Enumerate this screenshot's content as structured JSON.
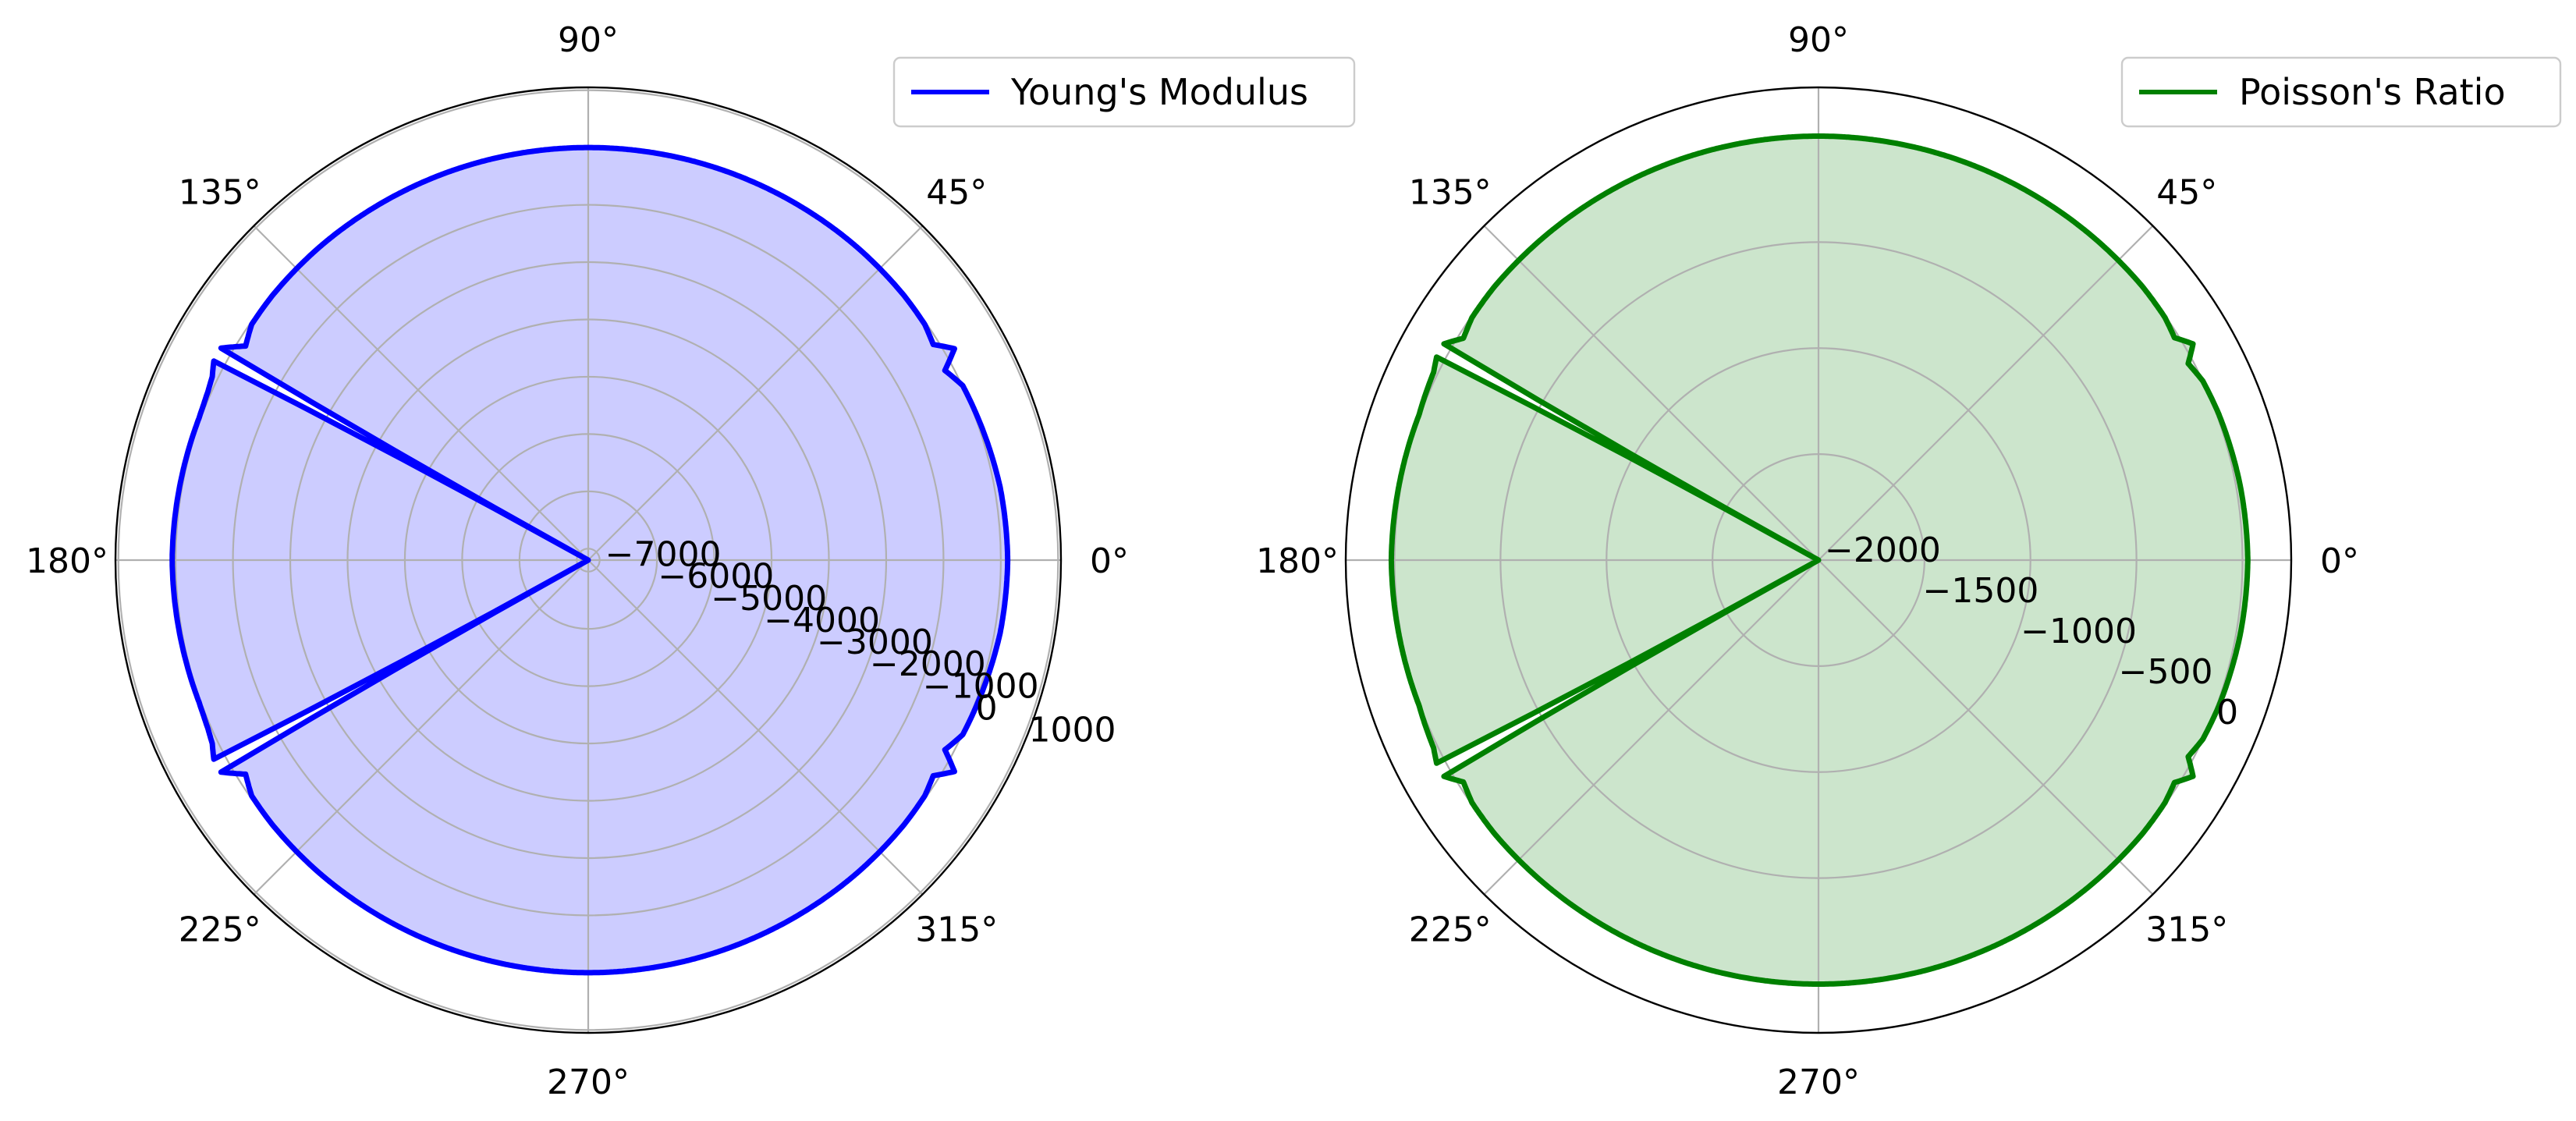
{
  "chart_data": [
    {
      "type": "polar",
      "title": "",
      "theta_unit": "degrees",
      "theta_tick_labels": [
        "0°",
        "45°",
        "90°",
        "135°",
        "180°",
        "225°",
        "270°",
        "315°"
      ],
      "r_ticks": [
        -7000,
        -6000,
        -5000,
        -4000,
        -3000,
        -2000,
        -1000,
        0,
        1000
      ],
      "r_tick_labels": [
        "−7000",
        "−6000",
        "−5000",
        "−4000",
        "−3000",
        "−2000",
        "−1000",
        "0",
        "1000"
      ],
      "rlim": [
        -7200,
        1050
      ],
      "grid": true,
      "legend_position": "upper-right",
      "series": [
        {
          "name": "Young's Modulus",
          "color": "#0000ff",
          "fill_color": "#ccccff",
          "theta_deg": [
            0,
            10,
            20,
            25,
            28,
            30,
            32,
            35,
            40,
            50,
            60,
            70,
            80,
            90,
            100,
            110,
            120,
            130,
            140,
            145,
            148,
            150,
            151,
            152,
            154,
            156,
            158,
            160,
            180,
            200,
            202,
            204,
            206,
            208,
            209,
            210,
            212,
            215,
            220,
            230,
            240,
            250,
            260,
            270,
            280,
            290,
            300,
            310,
            320,
            325,
            328,
            330,
            332,
            335,
            340,
            350,
            360
          ],
          "r": [
            120,
            100,
            40,
            10,
            -150,
            180,
            -100,
            -30,
            -10,
            0,
            0,
            0,
            0,
            0,
            0,
            0,
            0,
            0,
            -10,
            -30,
            -150,
            200,
            -7200,
            200,
            100,
            60,
            40,
            30,
            60,
            30,
            40,
            60,
            100,
            200,
            -7200,
            200,
            -150,
            -30,
            -10,
            0,
            0,
            0,
            0,
            0,
            0,
            0,
            0,
            0,
            -10,
            -30,
            -100,
            180,
            -150,
            10,
            40,
            100,
            120
          ]
        }
      ]
    },
    {
      "type": "polar",
      "title": "",
      "theta_unit": "degrees",
      "theta_tick_labels": [
        "0°",
        "45°",
        "90°",
        "135°",
        "180°",
        "225°",
        "270°",
        "315°"
      ],
      "r_ticks": [
        -2000,
        -1500,
        -1000,
        -500,
        0
      ],
      "r_tick_labels": [
        "−2000",
        "−1500",
        "−1000",
        "−500",
        "0"
      ],
      "rlim": [
        -2000,
        230
      ],
      "grid": true,
      "legend_position": "upper-right",
      "series": [
        {
          "name": "Poisson's Ratio",
          "color": "#008000",
          "fill_color": "#cce5cc",
          "theta_deg": [
            0,
            10,
            20,
            25,
            28,
            30,
            32,
            35,
            40,
            50,
            60,
            70,
            80,
            90,
            100,
            110,
            120,
            130,
            140,
            145,
            148,
            150,
            151,
            152,
            154,
            156,
            158,
            160,
            180,
            200,
            202,
            204,
            206,
            208,
            209,
            210,
            212,
            215,
            220,
            230,
            240,
            250,
            260,
            270,
            280,
            290,
            300,
            310,
            320,
            325,
            328,
            330,
            332,
            335,
            340,
            350,
            360
          ],
          "r": [
            25,
            20,
            10,
            0,
            -25,
            40,
            -20,
            -5,
            0,
            0,
            0,
            0,
            0,
            0,
            0,
            0,
            0,
            0,
            0,
            -5,
            -25,
            40,
            -2000,
            40,
            20,
            15,
            10,
            5,
            15,
            5,
            10,
            15,
            20,
            40,
            -2000,
            40,
            -25,
            -5,
            0,
            0,
            0,
            0,
            0,
            0,
            0,
            0,
            0,
            0,
            0,
            -5,
            -20,
            40,
            -25,
            0,
            10,
            20,
            25
          ]
        }
      ]
    }
  ]
}
